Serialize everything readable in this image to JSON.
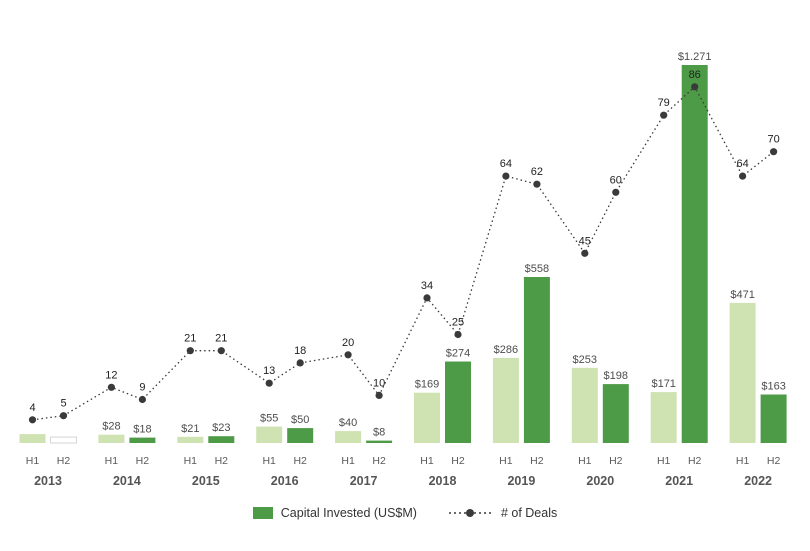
{
  "chart_data": {
    "type": "bar",
    "subtype": "grouped bars with overlaid dotted line",
    "title": "",
    "years": [
      "2013",
      "2014",
      "2015",
      "2016",
      "2017",
      "2018",
      "2019",
      "2020",
      "2021",
      "2022"
    ],
    "half_labels": [
      "H1",
      "H2"
    ],
    "bars": {
      "name": "Capital Invested (US$M)",
      "values": [
        30,
        20,
        28,
        18,
        21,
        23,
        55,
        50,
        40,
        8,
        169,
        274,
        286,
        558,
        253,
        198,
        171,
        1271,
        471,
        163
      ],
      "labels": [
        "",
        "",
        "$28",
        "$18",
        "$21",
        "$23",
        "$55",
        "$50",
        "$40",
        "$8",
        "$169",
        "$274",
        "$286",
        "$558",
        "$253",
        "$198",
        "$171",
        "$1.271",
        "$471",
        "$163"
      ],
      "styles": [
        "light",
        "white",
        "light",
        "dark",
        "light",
        "dark",
        "light",
        "dark",
        "light",
        "dark",
        "light",
        "dark",
        "light",
        "dark",
        "light",
        "dark",
        "light",
        "dark",
        "light",
        "dark"
      ],
      "ylim": [
        0,
        1271
      ],
      "y_axis_visible": false
    },
    "line": {
      "name": "# of Deals",
      "values": [
        4,
        5,
        12,
        9,
        21,
        21,
        13,
        18,
        20,
        10,
        34,
        25,
        64,
        62,
        45,
        60,
        79,
        86,
        64,
        70
      ],
      "ylim": [
        0,
        86
      ],
      "y_axis_visible": false,
      "style": "dotted with round markers"
    },
    "legend_position": "bottom",
    "grid": false
  },
  "palette": {
    "light_green": "#cfe2b2",
    "dark_green": "#4e9b47",
    "white_bar": "#ffffff",
    "white_bar_border": "#d6d6d6",
    "line_color": "#3a3a3a",
    "overlap_label_color": "#ffffff"
  },
  "legend": {
    "bar_label": "Capital Invested (US$M)",
    "line_label": "# of Deals"
  }
}
